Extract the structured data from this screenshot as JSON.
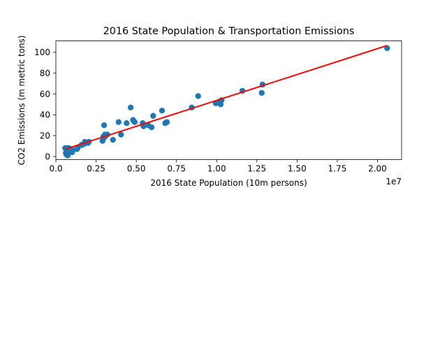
{
  "chart_data": {
    "type": "scatter",
    "title": "2016 State Population & Transportation Emissions",
    "xlabel": "2016 State Population (10m persons)",
    "ylabel": "CO2 Emissions (m metric tons)",
    "x_offset_text": "1e7",
    "x_tick_labels": [
      "0.0",
      "0.25",
      "0.50",
      "0.75",
      "1.00",
      "1.25",
      "1.50",
      "1.75",
      "2.00"
    ],
    "y_tick_labels": [
      "0",
      "20",
      "40",
      "60",
      "80",
      "100"
    ],
    "xlim": [
      0,
      2.15
    ],
    "ylim": [
      -3,
      111
    ],
    "grid": false,
    "colors": {
      "points": "#1f77b4",
      "fit_line": "#ff0000"
    },
    "series": [
      {
        "x": [
          0.058,
          0.062,
          0.065,
          0.067,
          0.073,
          0.075,
          0.08,
          0.085,
          0.1,
          0.105,
          0.13,
          0.135,
          0.16,
          0.175,
          0.18,
          0.2,
          0.205,
          0.29,
          0.295,
          0.3,
          0.3,
          0.305,
          0.31,
          0.32,
          0.355,
          0.39,
          0.405,
          0.44,
          0.465,
          0.48,
          0.49,
          0.54,
          0.545,
          0.575,
          0.595,
          0.605,
          0.66,
          0.68,
          0.69,
          0.845,
          0.885,
          0.995,
          1.01,
          1.025,
          1.03,
          1.16,
          1.28,
          1.285,
          2.06
        ],
        "y": [
          8,
          3.5,
          2,
          8,
          1,
          4,
          8,
          6,
          4,
          6,
          7,
          8,
          11,
          12,
          14,
          13,
          14,
          15,
          19,
          18,
          30,
          21,
          20,
          21,
          16,
          33,
          21,
          32,
          47,
          35,
          33,
          32,
          29,
          30,
          28,
          39,
          44,
          32,
          33,
          47,
          58,
          51,
          52,
          50,
          54,
          63,
          61,
          69,
          104
        ]
      },
      {
        "name": "fit",
        "x": [
          0.058,
          2.06
        ],
        "y": [
          7,
          106.5
        ]
      }
    ]
  }
}
